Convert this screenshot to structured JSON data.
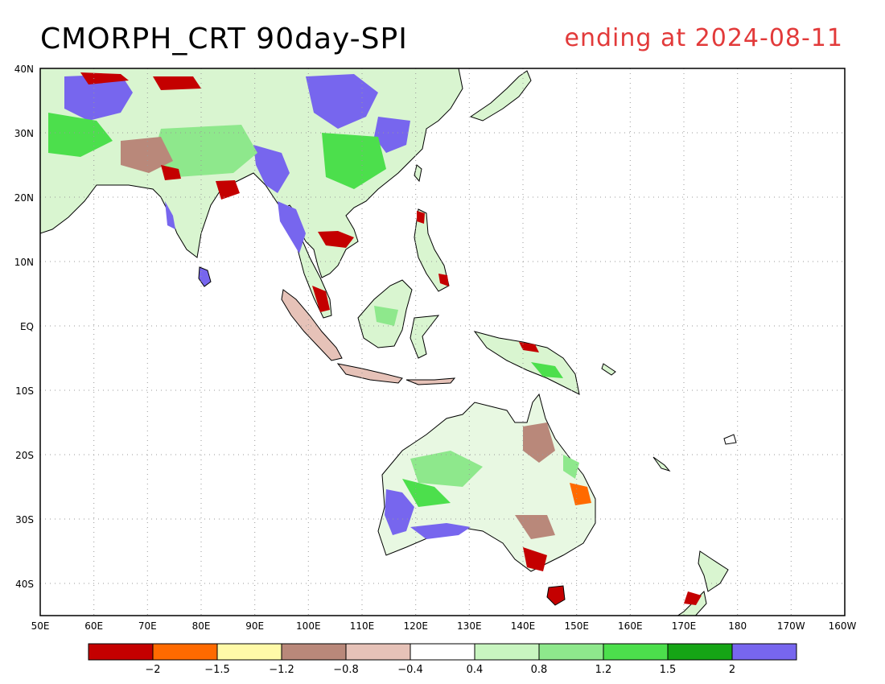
{
  "title": "CMORPH_CRT 90day-SPI",
  "subtitle": "ending at 2024-08-11",
  "axes": {
    "x_ticks": [
      "50E",
      "60E",
      "70E",
      "80E",
      "90E",
      "100E",
      "110E",
      "120E",
      "130E",
      "140E",
      "150E",
      "160E",
      "170E",
      "180",
      "170W",
      "160W"
    ],
    "y_ticks": [
      "40N",
      "30N",
      "20N",
      "10N",
      "EQ",
      "10S",
      "20S",
      "30S",
      "40S"
    ]
  },
  "legend": {
    "colors": [
      "#c40000",
      "#ff6a00",
      "#fffaa8",
      "#b9887a",
      "#e6c2b8",
      "#ffffff",
      "#c8f5c0",
      "#8ee88c",
      "#4cdf4c",
      "#15a515",
      "#7766ee"
    ],
    "labels": [
      "-2",
      "-1.5",
      "-1.2",
      "-0.8",
      "-0.4",
      "0.4",
      "0.8",
      "1.2",
      "1.5",
      "2"
    ]
  }
}
